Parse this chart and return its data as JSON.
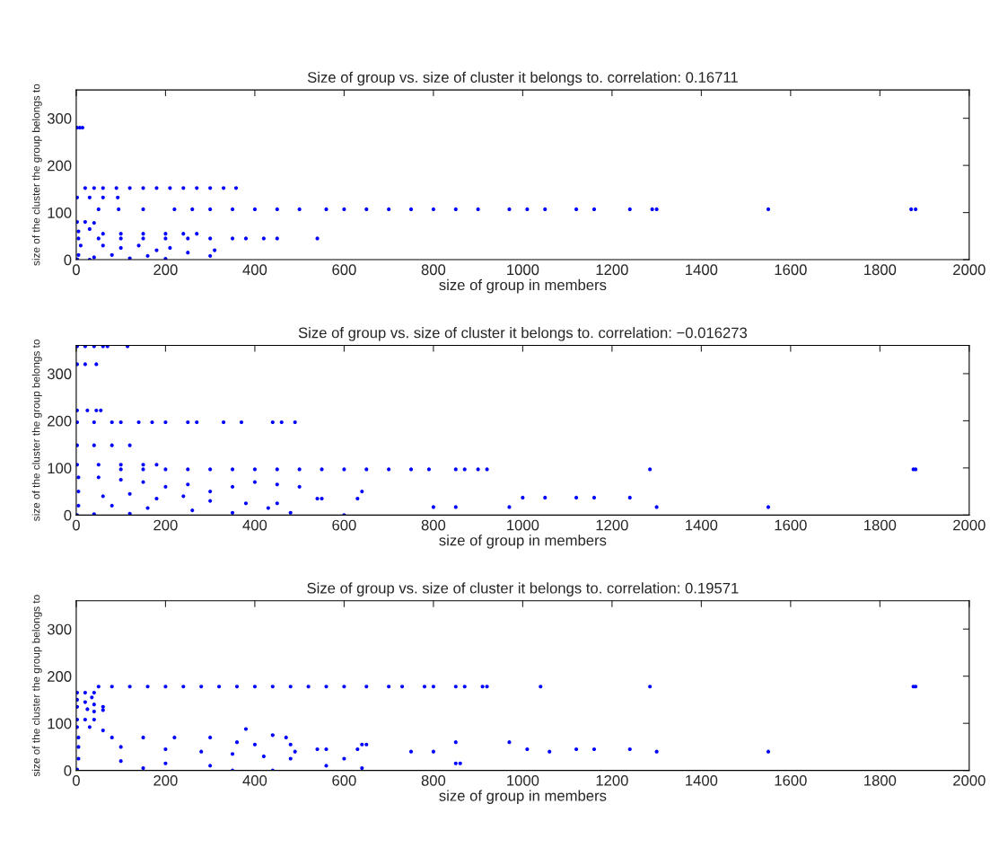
{
  "chart_data": [
    {
      "type": "scatter",
      "title": "Size of group vs. size of cluster it belongs to. correlation: 0.16711",
      "xlabel": "size of group in members",
      "ylabel": "size of the cluster the group belongs to",
      "xlim": [
        0,
        2000
      ],
      "ylim": [
        0,
        360
      ],
      "xticks": [
        0,
        200,
        400,
        600,
        800,
        1000,
        1200,
        1400,
        1600,
        1800,
        2000
      ],
      "yticks": [
        0,
        100,
        200,
        300
      ],
      "marker": "circle",
      "grid": false,
      "series": [
        {
          "color": "#0000ff",
          "x": [
            2,
            8,
            14,
            20,
            40,
            60,
            90,
            120,
            150,
            180,
            210,
            240,
            270,
            300,
            330,
            358,
            2,
            30,
            60,
            93,
            50,
            95,
            150,
            220,
            260,
            300,
            350,
            400,
            450,
            500,
            560,
            600,
            650,
            700,
            750,
            800,
            850,
            900,
            970,
            1010,
            1050,
            1120,
            1160,
            1240,
            1290,
            1300,
            1550,
            1870,
            1880,
            2,
            20,
            40,
            5,
            30,
            60,
            100,
            150,
            200,
            240,
            270,
            5,
            50,
            100,
            150,
            200,
            250,
            300,
            350,
            380,
            420,
            450,
            540,
            10,
            60,
            100,
            140,
            180,
            210,
            250,
            300,
            310,
            5,
            40,
            80,
            120,
            160,
            200,
            2,
            30
          ],
          "values": [
            280,
            280,
            280,
            152,
            152,
            152,
            152,
            152,
            152,
            152,
            152,
            152,
            152,
            152,
            152,
            152,
            132,
            132,
            132,
            132,
            107,
            107,
            107,
            107,
            107,
            107,
            107,
            107,
            107,
            107,
            107,
            107,
            107,
            107,
            107,
            107,
            107,
            107,
            107,
            107,
            107,
            107,
            107,
            107,
            107,
            107,
            107,
            107,
            107,
            80,
            80,
            78,
            60,
            65,
            55,
            55,
            55,
            55,
            55,
            55,
            45,
            45,
            45,
            45,
            45,
            45,
            45,
            45,
            45,
            45,
            45,
            45,
            30,
            30,
            25,
            30,
            20,
            25,
            15,
            8,
            20,
            10,
            5,
            10,
            3,
            8,
            2,
            1,
            0
          ]
        }
      ]
    },
    {
      "type": "scatter",
      "title": "Size of group vs. size of cluster it belongs to. correlation: −0.016273",
      "xlabel": "size of group in members",
      "ylabel": "size of the cluster the group belongs to",
      "xlim": [
        0,
        2000
      ],
      "ylim": [
        0,
        360
      ],
      "xticks": [
        0,
        200,
        400,
        600,
        800,
        1000,
        1200,
        1400,
        1600,
        1800,
        2000
      ],
      "yticks": [
        0,
        100,
        200,
        300
      ],
      "marker": "circle",
      "grid": false,
      "series": [
        {
          "color": "#0000ff",
          "x": [
            2,
            20,
            40,
            60,
            70,
            115,
            2,
            20,
            45,
            2,
            25,
            45,
            55,
            2,
            40,
            80,
            100,
            140,
            170,
            200,
            250,
            270,
            330,
            370,
            440,
            460,
            490,
            2,
            40,
            80,
            120,
            2,
            50,
            100,
            150,
            180,
            100,
            150,
            200,
            250,
            300,
            350,
            400,
            450,
            500,
            550,
            600,
            650,
            700,
            750,
            790,
            850,
            870,
            900,
            920,
            1285,
            1875,
            1880,
            5,
            50,
            100,
            150,
            200,
            250,
            300,
            350,
            400,
            450,
            500,
            640,
            5,
            60,
            120,
            180,
            240,
            300,
            380,
            450,
            540,
            550,
            630,
            5,
            80,
            160,
            260,
            350,
            430,
            480,
            600,
            800,
            850,
            970,
            1300,
            1550,
            1000,
            1050,
            1120,
            1160,
            1240,
            2,
            40,
            120
          ],
          "values": [
            358,
            358,
            358,
            358,
            358,
            358,
            320,
            320,
            320,
            222,
            222,
            222,
            222,
            197,
            197,
            197,
            197,
            197,
            197,
            197,
            197,
            197,
            197,
            197,
            197,
            197,
            197,
            148,
            148,
            148,
            148,
            107,
            107,
            107,
            107,
            107,
            97,
            97,
            97,
            97,
            97,
            97,
            97,
            97,
            97,
            97,
            97,
            97,
            97,
            97,
            97,
            97,
            97,
            97,
            97,
            97,
            97,
            97,
            80,
            80,
            75,
            70,
            60,
            65,
            50,
            60,
            70,
            65,
            60,
            50,
            50,
            40,
            45,
            35,
            40,
            30,
            25,
            25,
            35,
            35,
            35,
            20,
            20,
            15,
            10,
            5,
            15,
            5,
            0,
            17,
            17,
            17,
            17,
            17,
            37,
            37,
            37,
            37,
            37,
            0,
            2,
            3
          ]
        }
      ]
    },
    {
      "type": "scatter",
      "title": "Size of group vs. size of cluster it belongs to. correlation: 0.19571",
      "xlabel": "size of group in members",
      "ylabel": "size of the cluster the group belongs to",
      "xlim": [
        0,
        2000
      ],
      "ylim": [
        0,
        360
      ],
      "xticks": [
        0,
        200,
        400,
        600,
        800,
        1000,
        1200,
        1400,
        1600,
        1800,
        2000
      ],
      "yticks": [
        0,
        100,
        200,
        300
      ],
      "marker": "circle",
      "grid": false,
      "series": [
        {
          "color": "#0000ff",
          "x": [
            50,
            80,
            120,
            160,
            200,
            240,
            280,
            320,
            360,
            400,
            440,
            480,
            520,
            560,
            600,
            650,
            700,
            730,
            780,
            800,
            850,
            870,
            910,
            920,
            1040,
            1285,
            1875,
            1880,
            2,
            20,
            40,
            2,
            20,
            40,
            2,
            25,
            35,
            60,
            60,
            40,
            2,
            20,
            40,
            2,
            30,
            60,
            380,
            440,
            470,
            5,
            80,
            150,
            220,
            300,
            360,
            400,
            480,
            540,
            560,
            640,
            650,
            750,
            800,
            850,
            860,
            970,
            1010,
            1060,
            1120,
            1160,
            1240,
            1300,
            1550,
            5,
            100,
            200,
            280,
            350,
            420,
            490,
            480,
            560,
            600,
            630,
            640,
            850,
            5,
            100,
            200,
            300,
            350,
            440,
            150,
            2
          ],
          "values": [
            178,
            178,
            178,
            178,
            178,
            178,
            178,
            178,
            178,
            178,
            178,
            178,
            178,
            178,
            178,
            178,
            178,
            178,
            178,
            178,
            178,
            178,
            178,
            178,
            178,
            178,
            178,
            178,
            165,
            165,
            165,
            150,
            145,
            140,
            135,
            130,
            155,
            135,
            128,
            125,
            108,
            108,
            108,
            92,
            92,
            85,
            88,
            75,
            70,
            70,
            70,
            70,
            70,
            70,
            60,
            55,
            55,
            45,
            45,
            55,
            55,
            40,
            40,
            60,
            15,
            60,
            45,
            40,
            45,
            45,
            45,
            40,
            40,
            50,
            50,
            45,
            40,
            35,
            30,
            40,
            25,
            10,
            25,
            45,
            5,
            15,
            25,
            20,
            15,
            10,
            0,
            0,
            5,
            2
          ]
        }
      ]
    }
  ]
}
